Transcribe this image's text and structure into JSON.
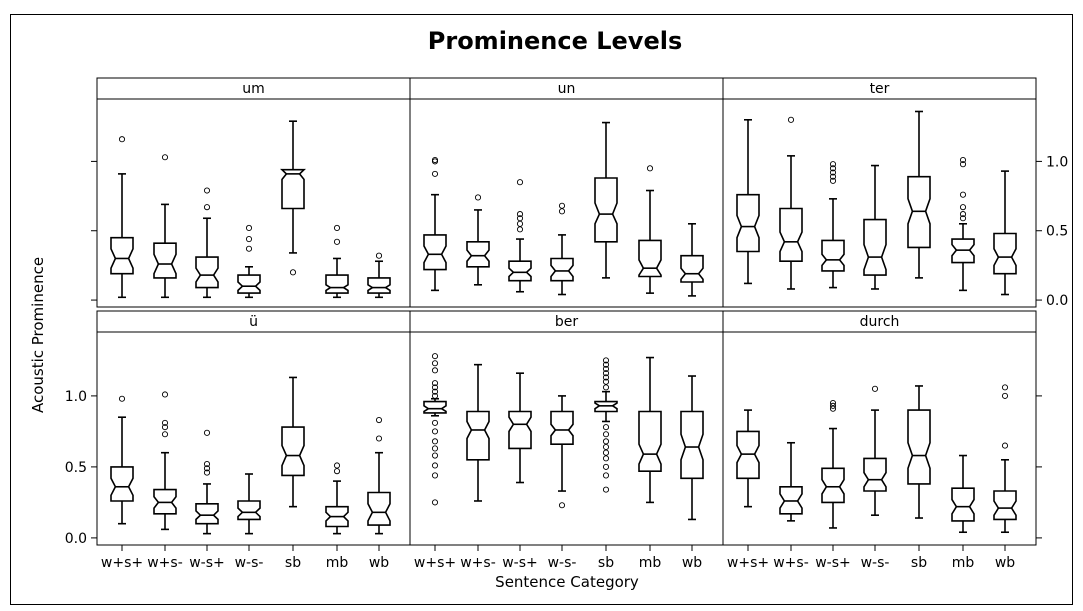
{
  "chart_data": {
    "type": "box",
    "title": "Prominence Levels",
    "xlabel": "Sentence Category",
    "ylabel": "Acoustic Prominence",
    "ylim": [
      -0.05,
      1.45
    ],
    "yticks": [
      0.0,
      0.5,
      1.0
    ],
    "ytick_labels": [
      "0.0",
      "0.5",
      "1.0"
    ],
    "categories": [
      "w+s+",
      "w+s-",
      "w-s+",
      "w-s-",
      "sb",
      "mb",
      "wb"
    ],
    "layout": {
      "rows": 2,
      "cols": 3
    },
    "panels": [
      {
        "label": "um",
        "boxes": [
          {
            "category": "w+s+",
            "min": 0.02,
            "q1": 0.19,
            "median": 0.3,
            "q3": 0.45,
            "max": 0.91,
            "notch": [
              0.23,
              0.37
            ],
            "outliers": [
              1.16
            ]
          },
          {
            "category": "w+s-",
            "min": 0.02,
            "q1": 0.16,
            "median": 0.26,
            "q3": 0.41,
            "max": 0.69,
            "notch": [
              0.19,
              0.33
            ],
            "outliers": [
              1.03
            ]
          },
          {
            "category": "w-s+",
            "min": 0.02,
            "q1": 0.09,
            "median": 0.18,
            "q3": 0.31,
            "max": 0.59,
            "notch": [
              0.13,
              0.23
            ],
            "outliers": [
              0.67,
              0.79
            ]
          },
          {
            "category": "w-s-",
            "min": 0.02,
            "q1": 0.05,
            "median": 0.1,
            "q3": 0.18,
            "max": 0.24,
            "notch": [
              0.07,
              0.13
            ],
            "outliers": [
              0.37,
              0.44,
              0.52
            ]
          },
          {
            "category": "sb",
            "min": 0.34,
            "q1": 0.66,
            "median": 0.91,
            "q3": 0.94,
            "max": 1.29,
            "notch": [
              0.87,
              0.95
            ],
            "outliers": [
              0.2
            ]
          },
          {
            "category": "mb",
            "min": 0.02,
            "q1": 0.05,
            "median": 0.09,
            "q3": 0.18,
            "max": 0.3,
            "notch": [
              0.07,
              0.11
            ],
            "outliers": [
              0.42,
              0.52
            ]
          },
          {
            "category": "wb",
            "min": 0.02,
            "q1": 0.05,
            "median": 0.09,
            "q3": 0.16,
            "max": 0.28,
            "notch": [
              0.07,
              0.11
            ],
            "outliers": [
              0.32
            ]
          }
        ]
      },
      {
        "label": "un",
        "boxes": [
          {
            "category": "w+s+",
            "min": 0.07,
            "q1": 0.22,
            "median": 0.33,
            "q3": 0.47,
            "max": 0.76,
            "notch": [
              0.27,
              0.39
            ],
            "outliers": [
              0.91,
              1.0,
              1.01
            ]
          },
          {
            "category": "w+s-",
            "min": 0.11,
            "q1": 0.24,
            "median": 0.32,
            "q3": 0.42,
            "max": 0.65,
            "notch": [
              0.28,
              0.36
            ],
            "outliers": [
              0.74
            ]
          },
          {
            "category": "w-s+",
            "min": 0.06,
            "q1": 0.14,
            "median": 0.2,
            "q3": 0.28,
            "max": 0.44,
            "notch": [
              0.17,
              0.23
            ],
            "outliers": [
              0.51,
              0.55,
              0.59,
              0.62,
              0.85
            ]
          },
          {
            "category": "w-s-",
            "min": 0.04,
            "q1": 0.14,
            "median": 0.21,
            "q3": 0.3,
            "max": 0.47,
            "notch": [
              0.17,
              0.25
            ],
            "outliers": [
              0.64,
              0.68
            ]
          },
          {
            "category": "sb",
            "min": 0.16,
            "q1": 0.42,
            "median": 0.62,
            "q3": 0.88,
            "max": 1.28,
            "notch": [
              0.55,
              0.7
            ],
            "outliers": []
          },
          {
            "category": "mb",
            "min": 0.05,
            "q1": 0.17,
            "median": 0.23,
            "q3": 0.43,
            "max": 0.79,
            "notch": [
              0.18,
              0.29
            ],
            "outliers": [
              0.95
            ]
          },
          {
            "category": "wb",
            "min": 0.03,
            "q1": 0.13,
            "median": 0.19,
            "q3": 0.32,
            "max": 0.55,
            "notch": [
              0.15,
              0.23
            ],
            "outliers": []
          }
        ]
      },
      {
        "label": "ter",
        "boxes": [
          {
            "category": "w+s+",
            "min": 0.12,
            "q1": 0.35,
            "median": 0.53,
            "q3": 0.76,
            "max": 1.3,
            "notch": [
              0.45,
              0.61
            ],
            "outliers": []
          },
          {
            "category": "w+s-",
            "min": 0.08,
            "q1": 0.28,
            "median": 0.42,
            "q3": 0.66,
            "max": 1.04,
            "notch": [
              0.35,
              0.49
            ],
            "outliers": [
              1.3
            ]
          },
          {
            "category": "w-s+",
            "min": 0.09,
            "q1": 0.21,
            "median": 0.29,
            "q3": 0.43,
            "max": 0.73,
            "notch": [
              0.25,
              0.33
            ],
            "outliers": [
              0.86,
              0.89,
              0.92,
              0.95,
              0.98
            ]
          },
          {
            "category": "w-s-",
            "min": 0.08,
            "q1": 0.18,
            "median": 0.31,
            "q3": 0.58,
            "max": 0.97,
            "notch": [
              0.22,
              0.4
            ],
            "outliers": []
          },
          {
            "category": "sb",
            "min": 0.16,
            "q1": 0.38,
            "median": 0.64,
            "q3": 0.89,
            "max": 1.36,
            "notch": [
              0.55,
              0.73
            ],
            "outliers": []
          },
          {
            "category": "mb",
            "min": 0.07,
            "q1": 0.27,
            "median": 0.36,
            "q3": 0.44,
            "max": 0.55,
            "notch": [
              0.32,
              0.4
            ],
            "outliers": [
              0.59,
              0.62,
              0.67,
              0.76,
              0.98,
              1.01
            ]
          },
          {
            "category": "wb",
            "min": 0.04,
            "q1": 0.19,
            "median": 0.31,
            "q3": 0.48,
            "max": 0.93,
            "notch": [
              0.25,
              0.37
            ],
            "outliers": []
          }
        ]
      },
      {
        "label": "ü",
        "boxes": [
          {
            "category": "w+s+",
            "min": 0.1,
            "q1": 0.26,
            "median": 0.36,
            "q3": 0.5,
            "max": 0.85,
            "notch": [
              0.3,
              0.42
            ],
            "outliers": [
              0.98
            ]
          },
          {
            "category": "w+s-",
            "min": 0.06,
            "q1": 0.17,
            "median": 0.25,
            "q3": 0.34,
            "max": 0.6,
            "notch": [
              0.21,
              0.29
            ],
            "outliers": [
              0.73,
              0.78,
              0.81,
              1.01
            ]
          },
          {
            "category": "w-s+",
            "min": 0.03,
            "q1": 0.1,
            "median": 0.16,
            "q3": 0.24,
            "max": 0.38,
            "notch": [
              0.13,
              0.19
            ],
            "outliers": [
              0.46,
              0.49,
              0.52,
              0.74
            ]
          },
          {
            "category": "w-s-",
            "min": 0.03,
            "q1": 0.13,
            "median": 0.18,
            "q3": 0.26,
            "max": 0.45,
            "notch": [
              0.15,
              0.21
            ],
            "outliers": []
          },
          {
            "category": "sb",
            "min": 0.22,
            "q1": 0.44,
            "median": 0.58,
            "q3": 0.78,
            "max": 1.13,
            "notch": [
              0.51,
              0.65
            ],
            "outliers": []
          },
          {
            "category": "mb",
            "min": 0.03,
            "q1": 0.08,
            "median": 0.15,
            "q3": 0.22,
            "max": 0.4,
            "notch": [
              0.12,
              0.18
            ],
            "outliers": [
              0.47,
              0.51
            ]
          },
          {
            "category": "wb",
            "min": 0.03,
            "q1": 0.09,
            "median": 0.18,
            "q3": 0.32,
            "max": 0.6,
            "notch": [
              0.12,
              0.24
            ],
            "outliers": [
              0.7,
              0.83
            ]
          }
        ]
      },
      {
        "label": "ber",
        "boxes": [
          {
            "category": "w+s+",
            "min": 0.86,
            "q1": 0.88,
            "median": 0.91,
            "q3": 0.96,
            "max": 0.98,
            "notch": [
              0.89,
              0.93
            ],
            "outliers": [
              0.25,
              0.44,
              0.51,
              0.58,
              0.63,
              0.68,
              0.75,
              0.81,
              1.0,
              1.03,
              1.06,
              1.09,
              1.18,
              1.23,
              1.28
            ]
          },
          {
            "category": "w+s-",
            "min": 0.26,
            "q1": 0.55,
            "median": 0.76,
            "q3": 0.89,
            "max": 1.22,
            "notch": [
              0.7,
              0.82
            ],
            "outliers": []
          },
          {
            "category": "w-s+",
            "min": 0.39,
            "q1": 0.63,
            "median": 0.8,
            "q3": 0.89,
            "max": 1.16,
            "notch": [
              0.75,
              0.85
            ],
            "outliers": []
          },
          {
            "category": "w-s-",
            "min": 0.33,
            "q1": 0.66,
            "median": 0.76,
            "q3": 0.89,
            "max": 1.0,
            "notch": [
              0.72,
              0.8
            ],
            "outliers": [
              0.23
            ]
          },
          {
            "category": "sb",
            "min": 0.82,
            "q1": 0.89,
            "median": 0.93,
            "q3": 0.96,
            "max": 1.03,
            "notch": [
              0.91,
              0.95
            ],
            "outliers": [
              0.34,
              0.44,
              0.5,
              0.56,
              0.6,
              0.64,
              0.68,
              0.73,
              0.78,
              1.06,
              1.1,
              1.13,
              1.16,
              1.19,
              1.22,
              1.25
            ]
          },
          {
            "category": "mb",
            "min": 0.25,
            "q1": 0.47,
            "median": 0.59,
            "q3": 0.89,
            "max": 1.27,
            "notch": [
              0.52,
              0.66
            ],
            "outliers": []
          },
          {
            "category": "wb",
            "min": 0.13,
            "q1": 0.42,
            "median": 0.64,
            "q3": 0.89,
            "max": 1.14,
            "notch": [
              0.55,
              0.73
            ],
            "outliers": []
          }
        ]
      },
      {
        "label": "durch",
        "boxes": [
          {
            "category": "w+s+",
            "min": 0.22,
            "q1": 0.42,
            "median": 0.59,
            "q3": 0.75,
            "max": 0.9,
            "notch": [
              0.53,
              0.65
            ],
            "outliers": []
          },
          {
            "category": "w+s-",
            "min": 0.12,
            "q1": 0.17,
            "median": 0.26,
            "q3": 0.36,
            "max": 0.67,
            "notch": [
              0.21,
              0.31
            ],
            "outliers": []
          },
          {
            "category": "w-s+",
            "min": 0.07,
            "q1": 0.25,
            "median": 0.36,
            "q3": 0.49,
            "max": 0.77,
            "notch": [
              0.31,
              0.41
            ],
            "outliers": [
              0.91,
              0.93,
              0.95
            ]
          },
          {
            "category": "w-s-",
            "min": 0.16,
            "q1": 0.33,
            "median": 0.41,
            "q3": 0.56,
            "max": 0.9,
            "notch": [
              0.36,
              0.46
            ],
            "outliers": [
              1.05
            ]
          },
          {
            "category": "sb",
            "min": 0.14,
            "q1": 0.38,
            "median": 0.58,
            "q3": 0.9,
            "max": 1.07,
            "notch": [
              0.49,
              0.67
            ],
            "outliers": []
          },
          {
            "category": "mb",
            "min": 0.04,
            "q1": 0.12,
            "median": 0.22,
            "q3": 0.35,
            "max": 0.58,
            "notch": [
              0.17,
              0.27
            ],
            "outliers": []
          },
          {
            "category": "wb",
            "min": 0.04,
            "q1": 0.13,
            "median": 0.21,
            "q3": 0.33,
            "max": 0.55,
            "notch": [
              0.16,
              0.26
            ],
            "outliers": [
              0.65,
              1.0,
              1.06
            ]
          }
        ]
      }
    ]
  }
}
